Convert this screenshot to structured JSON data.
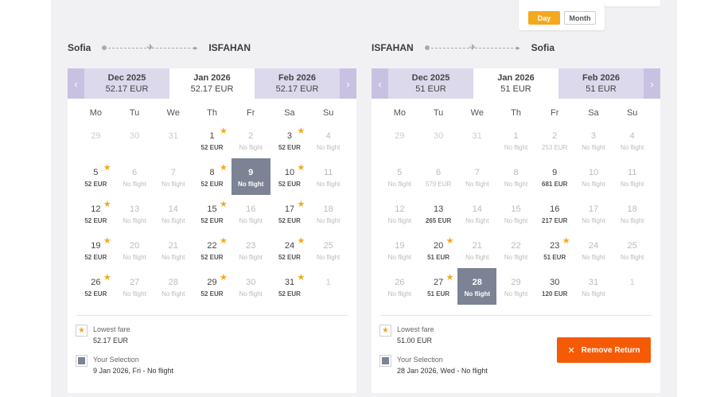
{
  "view_toggle": {
    "day": "Day",
    "month": "Month"
  },
  "outbound": {
    "from": "Sofia",
    "to": "ISFAHAN",
    "months": [
      {
        "name": "Dec 2025",
        "price": "52.17 EUR"
      },
      {
        "name": "Jan 2026",
        "price": "52.17 EUR"
      },
      {
        "name": "Feb 2026",
        "price": "52.17 EUR"
      }
    ],
    "weekdays": [
      "Mo",
      "Tu",
      "We",
      "Th",
      "Fr",
      "Sa",
      "Su"
    ],
    "weeks": [
      [
        {
          "d": "29",
          "out": true
        },
        {
          "d": "30",
          "out": true
        },
        {
          "d": "31",
          "out": true
        },
        {
          "d": "1",
          "p": "52 EUR",
          "star": true
        },
        {
          "d": "2",
          "p": "No flight",
          "nf": true
        },
        {
          "d": "3",
          "p": "52 EUR",
          "star": true
        },
        {
          "d": "4",
          "p": "No flight",
          "nf": true
        }
      ],
      [
        {
          "d": "5",
          "p": "52 EUR",
          "star": true
        },
        {
          "d": "6",
          "p": "No flight",
          "nf": true
        },
        {
          "d": "7",
          "p": "No flight",
          "nf": true
        },
        {
          "d": "8",
          "p": "52 EUR",
          "star": true
        },
        {
          "d": "9",
          "p": "No flight",
          "sel": true
        },
        {
          "d": "10",
          "p": "52 EUR",
          "star": true
        },
        {
          "d": "11",
          "p": "No flight",
          "nf": true
        }
      ],
      [
        {
          "d": "12",
          "p": "52 EUR",
          "star": true
        },
        {
          "d": "13",
          "p": "No flight",
          "nf": true
        },
        {
          "d": "14",
          "p": "No flight",
          "nf": true
        },
        {
          "d": "15",
          "p": "52 EUR",
          "star": true
        },
        {
          "d": "16",
          "p": "No flight",
          "nf": true
        },
        {
          "d": "17",
          "p": "52 EUR",
          "star": true
        },
        {
          "d": "18",
          "p": "No flight",
          "nf": true
        }
      ],
      [
        {
          "d": "19",
          "p": "52 EUR",
          "star": true
        },
        {
          "d": "20",
          "p": "No flight",
          "nf": true
        },
        {
          "d": "21",
          "p": "No flight",
          "nf": true
        },
        {
          "d": "22",
          "p": "52 EUR",
          "star": true
        },
        {
          "d": "23",
          "p": "No flight",
          "nf": true
        },
        {
          "d": "24",
          "p": "52 EUR",
          "star": true
        },
        {
          "d": "25",
          "p": "No flight",
          "nf": true
        }
      ],
      [
        {
          "d": "26",
          "p": "52 EUR",
          "star": true
        },
        {
          "d": "27",
          "p": "No flight",
          "nf": true
        },
        {
          "d": "28",
          "p": "No flight",
          "nf": true
        },
        {
          "d": "29",
          "p": "52 EUR",
          "star": true
        },
        {
          "d": "30",
          "p": "No flight",
          "nf": true
        },
        {
          "d": "31",
          "p": "52 EUR",
          "star": true
        },
        {
          "d": "1",
          "out": true
        }
      ]
    ],
    "legend": {
      "lowest_label": "Lowest fare",
      "lowest_value": "52.17 EUR",
      "selection_label": "Your Selection",
      "selection_value": "9 Jan 2026, Fri - No flight"
    }
  },
  "return": {
    "from": "ISFAHAN",
    "to": "Sofia",
    "months": [
      {
        "name": "Dec 2025",
        "price": "51 EUR"
      },
      {
        "name": "Jan 2026",
        "price": "51 EUR"
      },
      {
        "name": "Feb 2026",
        "price": "51 EUR"
      }
    ],
    "weekdays": [
      "Mo",
      "Tu",
      "We",
      "Th",
      "Fr",
      "Sa",
      "Su"
    ],
    "weeks": [
      [
        {
          "d": "29",
          "out": true
        },
        {
          "d": "30",
          "out": true
        },
        {
          "d": "31",
          "out": true
        },
        {
          "d": "1",
          "p": "No flight",
          "nf": true
        },
        {
          "d": "2",
          "p": "253 EUR",
          "nf": true
        },
        {
          "d": "3",
          "p": "No flight",
          "nf": true
        },
        {
          "d": "4",
          "p": "No flight",
          "nf": true
        }
      ],
      [
        {
          "d": "5",
          "p": "No flight",
          "nf": true
        },
        {
          "d": "6",
          "p": "579 EUR",
          "nf": true
        },
        {
          "d": "7",
          "p": "No flight",
          "nf": true
        },
        {
          "d": "8",
          "p": "No flight",
          "nf": true
        },
        {
          "d": "9",
          "p": "681 EUR"
        },
        {
          "d": "10",
          "p": "No flight",
          "nf": true
        },
        {
          "d": "11",
          "p": "No flight",
          "nf": true
        }
      ],
      [
        {
          "d": "12",
          "p": "No flight",
          "nf": true
        },
        {
          "d": "13",
          "p": "265 EUR"
        },
        {
          "d": "14",
          "p": "No flight",
          "nf": true
        },
        {
          "d": "15",
          "p": "No flight",
          "nf": true
        },
        {
          "d": "16",
          "p": "217 EUR"
        },
        {
          "d": "17",
          "p": "No flight",
          "nf": true
        },
        {
          "d": "18",
          "p": "No flight",
          "nf": true
        }
      ],
      [
        {
          "d": "19",
          "p": "No flight",
          "nf": true
        },
        {
          "d": "20",
          "p": "51 EUR",
          "star": true
        },
        {
          "d": "21",
          "p": "No flight",
          "nf": true
        },
        {
          "d": "22",
          "p": "No flight",
          "nf": true
        },
        {
          "d": "23",
          "p": "51 EUR",
          "star": true
        },
        {
          "d": "24",
          "p": "No flight",
          "nf": true
        },
        {
          "d": "25",
          "p": "No flight",
          "nf": true
        }
      ],
      [
        {
          "d": "26",
          "p": "No flight",
          "nf": true
        },
        {
          "d": "27",
          "p": "51 EUR",
          "star": true
        },
        {
          "d": "28",
          "p": "No flight",
          "sel": true
        },
        {
          "d": "29",
          "p": "No flight",
          "nf": true
        },
        {
          "d": "30",
          "p": "120 EUR"
        },
        {
          "d": "31",
          "p": "No flight",
          "nf": true
        },
        {
          "d": "1",
          "out": true
        }
      ]
    ],
    "legend": {
      "lowest_label": "Lowest fare",
      "lowest_value": "51.00 EUR",
      "selection_label": "Your Selection",
      "selection_value": "28 Jan 2026, Wed - No flight"
    },
    "remove_label": "Remove Return"
  }
}
